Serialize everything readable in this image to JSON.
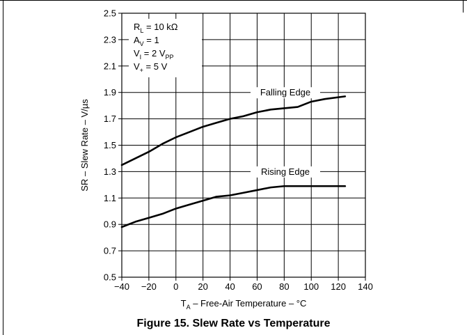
{
  "figure": {
    "caption": "Figure 15. Slew Rate vs Temperature"
  },
  "chart_data": {
    "type": "line",
    "xlabel": {
      "main": "T",
      "sub": "A",
      "rest": " – Free-Air Temperature – °C"
    },
    "ylabel": "SR – Slew Rate – V/µs",
    "xlim": [
      -40,
      140
    ],
    "ylim": [
      0.5,
      2.5
    ],
    "xticks": [
      -40,
      -20,
      0,
      20,
      40,
      60,
      80,
      100,
      120,
      140
    ],
    "yticks": [
      0.5,
      0.7,
      0.9,
      1.1,
      1.3,
      1.5,
      1.7,
      1.9,
      2.1,
      2.3,
      2.5
    ],
    "grid": true,
    "conditions": [
      {
        "main": "R",
        "sub": "L",
        "rest": " = 10 kΩ"
      },
      {
        "main": "A",
        "sub": "V",
        "rest": " = 1"
      },
      {
        "main": "V",
        "sub": "I",
        "rest": " = 2 V",
        "sub2": "PP"
      },
      {
        "main": "V",
        "sub": "+",
        "rest": "  = 5 V"
      }
    ],
    "series": [
      {
        "name": "Falling Edge",
        "x": [
          -40,
          -30,
          -20,
          -10,
          0,
          10,
          20,
          30,
          40,
          50,
          60,
          70,
          80,
          90,
          100,
          110,
          125
        ],
        "values": [
          1.35,
          1.4,
          1.45,
          1.51,
          1.56,
          1.6,
          1.64,
          1.67,
          1.7,
          1.72,
          1.75,
          1.77,
          1.78,
          1.79,
          1.83,
          1.85,
          1.87
        ]
      },
      {
        "name": "Rising Edge",
        "x": [
          -40,
          -30,
          -20,
          -10,
          0,
          10,
          20,
          30,
          40,
          50,
          60,
          70,
          80,
          90,
          100,
          110,
          125
        ],
        "values": [
          0.88,
          0.92,
          0.95,
          0.98,
          1.02,
          1.05,
          1.08,
          1.11,
          1.12,
          1.14,
          1.16,
          1.18,
          1.19,
          1.19,
          1.19,
          1.19,
          1.19
        ]
      }
    ],
    "color": "#000000"
  }
}
